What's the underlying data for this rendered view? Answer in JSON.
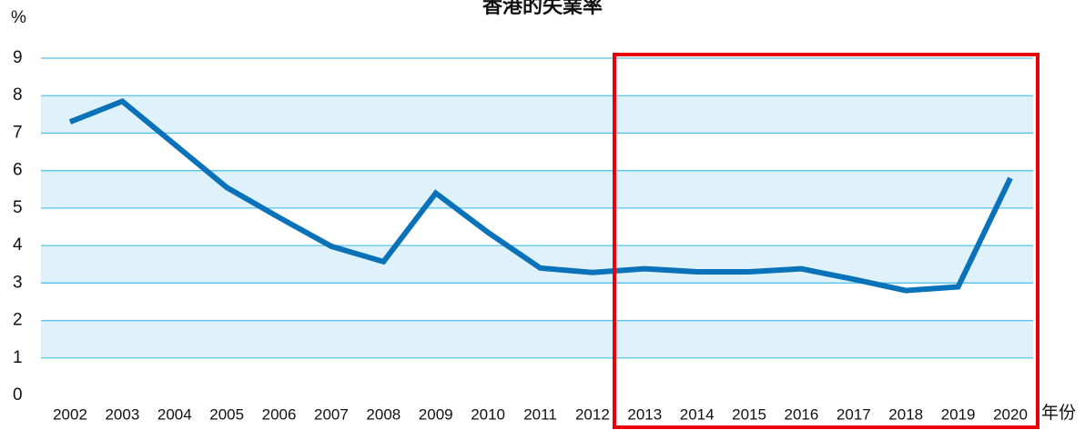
{
  "chart_data": {
    "type": "line",
    "title": "香港的失業率",
    "y_label": "%",
    "x_label": "年份",
    "categories": [
      "2002",
      "2003",
      "2004",
      "2005",
      "2006",
      "2007",
      "2008",
      "2009",
      "2010",
      "2011",
      "2012",
      "2013",
      "2014",
      "2015",
      "2016",
      "2017",
      "2018",
      "2019",
      "2020"
    ],
    "series": [
      {
        "name": "失業率",
        "color": "#0a72b9",
        "values": [
          7.3,
          7.85,
          6.7,
          5.55,
          4.75,
          3.98,
          3.57,
          5.4,
          4.35,
          3.4,
          3.28,
          3.38,
          3.3,
          3.3,
          3.38,
          3.1,
          2.8,
          2.9,
          5.8
        ]
      }
    ],
    "ylim": [
      0,
      9
    ],
    "yticks": [
      0,
      1,
      2,
      3,
      4,
      5,
      6,
      7,
      8,
      9
    ],
    "grid": true
  }
}
